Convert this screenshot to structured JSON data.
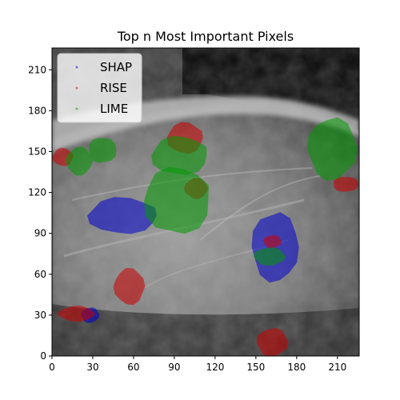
{
  "chart_data": {
    "type": "heatmap",
    "title": "Top n Most Important Pixels",
    "xlabel": "",
    "ylabel": "",
    "xlim": [
      0,
      226
    ],
    "ylim": [
      0,
      226
    ],
    "x_ticks": [
      0,
      30,
      60,
      90,
      120,
      150,
      180,
      210
    ],
    "y_ticks": [
      0,
      30,
      60,
      90,
      120,
      150,
      180,
      210
    ],
    "grid": false,
    "legend_position": "upper-left",
    "background": "grayscale mammogram image",
    "series": [
      {
        "name": "SHAP",
        "color": "#0000cc",
        "regions": [
          {
            "center": [
              52,
              103
            ],
            "radius": [
              27,
              14
            ]
          },
          {
            "center": [
              164,
              80
            ],
            "radius": [
              18,
              27
            ]
          },
          {
            "center": [
              28,
              30
            ],
            "radius": [
              7,
              6
            ]
          }
        ]
      },
      {
        "name": "RISE",
        "color": "#cc0000",
        "regions": [
          {
            "center": [
              98,
              160
            ],
            "radius": [
              14,
              12
            ]
          },
          {
            "center": [
              162,
              10
            ],
            "radius": [
              12,
              11
            ]
          },
          {
            "center": [
              57,
              51
            ],
            "radius": [
              12,
              14
            ]
          },
          {
            "center": [
              18,
              31
            ],
            "radius": [
              14,
              6
            ]
          },
          {
            "center": [
              8,
              146
            ],
            "radius": [
              8,
              7
            ]
          },
          {
            "center": [
              106,
              123
            ],
            "radius": [
              9,
              8
            ]
          },
          {
            "center": [
              216,
              126
            ],
            "radius": [
              10,
              6
            ]
          },
          {
            "center": [
              162,
              84
            ],
            "radius": [
              7,
              5
            ]
          }
        ]
      },
      {
        "name": "LIME",
        "color": "#009900",
        "regions": [
          {
            "center": [
              206,
              152
            ],
            "radius": [
              19,
              24
            ]
          },
          {
            "center": [
              92,
              114
            ],
            "radius": [
              26,
              26
            ]
          },
          {
            "center": [
              94,
              147
            ],
            "radius": [
              22,
              15
            ]
          },
          {
            "center": [
              20,
              143
            ],
            "radius": [
              10,
              11
            ]
          },
          {
            "center": [
              160,
              73
            ],
            "radius": [
              12,
              7
            ]
          },
          {
            "center": [
              37,
              151
            ],
            "radius": [
              11,
              10
            ]
          }
        ]
      }
    ]
  }
}
